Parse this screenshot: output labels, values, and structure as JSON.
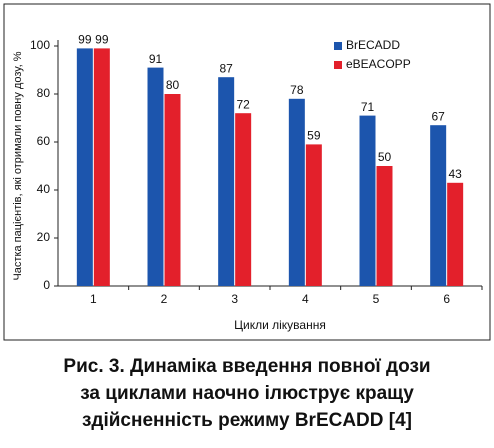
{
  "chart_data": {
    "type": "bar",
    "y_label": "Частка пацієнтів, які отримали повну дозу, %",
    "x_label": "Цикли лікування",
    "categories": [
      "1",
      "2",
      "3",
      "4",
      "5",
      "6"
    ],
    "series": [
      {
        "name": "BrECADD",
        "color": "#1c55ad",
        "values": [
          99,
          91,
          87,
          78,
          71,
          67
        ]
      },
      {
        "name": "eBEACOPP",
        "color": "#e3202b",
        "values": [
          99,
          80,
          72,
          59,
          50,
          43
        ]
      }
    ],
    "ylim": [
      0,
      100
    ],
    "yticks": [
      0,
      20,
      40,
      60,
      80,
      100
    ],
    "grid": false,
    "legend": "top-right",
    "caption": [
      "Рис. 3. Динаміка введення повної дози",
      "за циклами наочно ілюструє кращу",
      "здійсненність режиму BrECADD [4]"
    ]
  }
}
